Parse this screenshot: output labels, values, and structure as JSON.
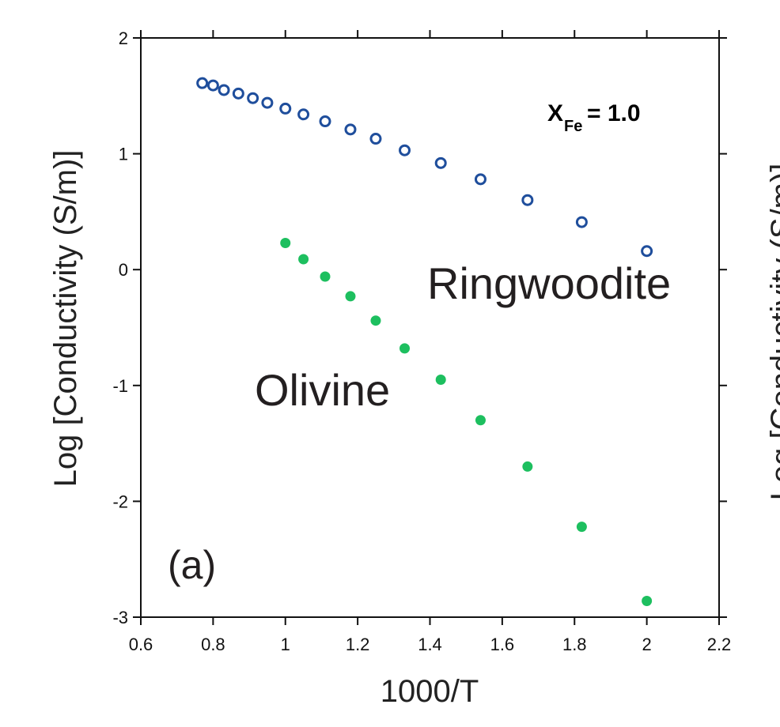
{
  "chart_data": {
    "type": "scatter",
    "xlabel": "1000/T",
    "ylabel": "Log [Conductivity (S/m)]",
    "xlim": [
      0.6,
      2.2
    ],
    "ylim": [
      -3,
      2
    ],
    "x_ticks": [
      "0.6",
      "0.8",
      "1",
      "1.2",
      "1.4",
      "1.6",
      "1.8",
      "2",
      "2.2"
    ],
    "y_ticks": [
      "-3",
      "-2",
      "-1",
      "0",
      "1",
      "2"
    ],
    "grid": false,
    "series": [
      {
        "name": "Ringwoodite",
        "marker": "open-circle",
        "color": "#1f4e9c",
        "x": [
          0.77,
          0.8,
          0.83,
          0.87,
          0.91,
          0.95,
          1.0,
          1.05,
          1.11,
          1.18,
          1.25,
          1.33,
          1.43,
          1.54,
          1.67,
          1.82,
          2.0
        ],
        "y": [
          1.61,
          1.59,
          1.55,
          1.52,
          1.48,
          1.44,
          1.39,
          1.34,
          1.28,
          1.21,
          1.13,
          1.03,
          0.92,
          0.78,
          0.6,
          0.41,
          0.16
        ]
      },
      {
        "name": "Olivine",
        "marker": "filled-circle",
        "color": "#1dbf5f",
        "x": [
          1.0,
          1.05,
          1.11,
          1.18,
          1.25,
          1.33,
          1.43,
          1.54,
          1.67,
          1.82,
          2.0
        ],
        "y": [
          0.23,
          0.09,
          -0.06,
          -0.23,
          -0.44,
          -0.68,
          -0.95,
          -1.3,
          -1.7,
          -2.22,
          -2.86
        ]
      }
    ],
    "annotations": {
      "panel_label": "(a)",
      "xfe_main": "X",
      "xfe_sub": "Fe",
      "xfe_value": " = 1.0",
      "ringwoodite_label": "Ringwoodite",
      "olivine_label": "Olivine"
    },
    "adjacent_panel_ylabel": "Log [Conductivity (S/m)]"
  }
}
